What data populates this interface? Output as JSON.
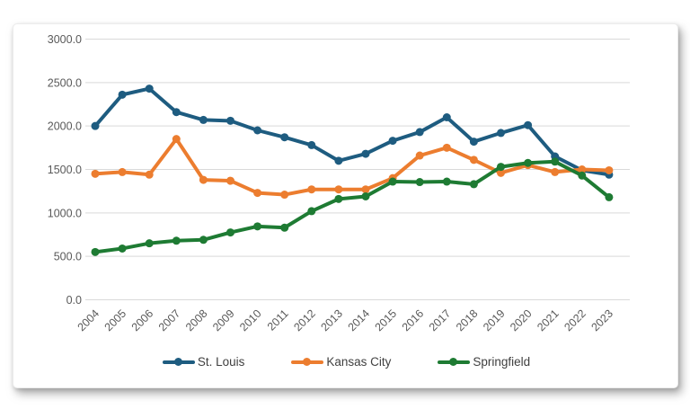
{
  "page": {
    "background": "#FFFFFF"
  },
  "chart_data": {
    "type": "line",
    "title": "",
    "xlabel": "",
    "ylabel": "",
    "categories": [
      "2004",
      "2005",
      "2006",
      "2007",
      "2008",
      "2009",
      "2010",
      "2011",
      "2012",
      "2013",
      "2014",
      "2015",
      "2016",
      "2017",
      "2018",
      "2019",
      "2020",
      "2021",
      "2022",
      "2023"
    ],
    "series": [
      {
        "name": "St. Louis",
        "color": "#1E5C80",
        "values": [
          2000,
          2360,
          2430,
          2160,
          2070,
          2060,
          1950,
          1870,
          1780,
          1600,
          1680,
          1830,
          1930,
          2100,
          1820,
          1920,
          2010,
          1650,
          1490,
          1440
        ]
      },
      {
        "name": "Kansas City",
        "color": "#EC7D2F",
        "values": [
          1450,
          1470,
          1440,
          1850,
          1380,
          1370,
          1230,
          1210,
          1270,
          1270,
          1270,
          1400,
          1660,
          1750,
          1610,
          1460,
          1550,
          1470,
          1500,
          1490
        ]
      },
      {
        "name": "Springfield",
        "color": "#1E7B33",
        "values": [
          550,
          590,
          650,
          680,
          690,
          775,
          845,
          830,
          1020,
          1160,
          1190,
          1360,
          1355,
          1360,
          1330,
          1530,
          1575,
          1590,
          1430,
          1180
        ]
      }
    ],
    "ylim": [
      0,
      3000
    ],
    "ytick_interval": 500,
    "ytick_labels": [
      "3000.0",
      "2500.0",
      "2000.0",
      "1500.0",
      "1000.0",
      "500.0",
      "0.0"
    ],
    "grid": true,
    "legend_position": "bottom",
    "marker": "circle",
    "style_colors": {
      "gridline": "#D9D9D9",
      "axis_text": "#595959",
      "legend_text": "#3F3F3F",
      "card_background": "#FFFFFF"
    }
  }
}
